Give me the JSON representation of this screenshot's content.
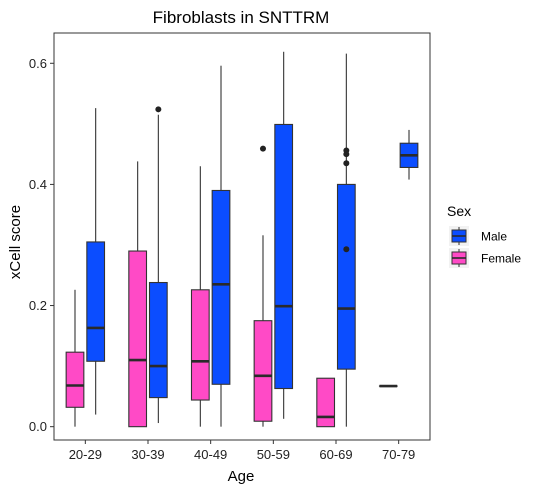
{
  "chart_data": {
    "type": "boxplot",
    "title": "Fibroblasts in SNTTRM",
    "xlabel": "Age",
    "ylabel": "xCell score",
    "ylim": [
      -0.022,
      0.65
    ],
    "yticks": [
      0.0,
      0.2,
      0.4,
      0.6
    ],
    "yticklabels": [
      "0.0",
      "0.2",
      "0.4",
      "0.6"
    ],
    "categories": [
      "20-29",
      "30-39",
      "40-49",
      "50-59",
      "60-69",
      "70-79"
    ],
    "grid": false,
    "legend": {
      "title": "Sex",
      "placement": "right",
      "entries": [
        {
          "label": "Male",
          "color": "#0B4DFF"
        },
        {
          "label": "Female",
          "color": "#FF4AC6"
        }
      ]
    },
    "series": [
      {
        "name": "Female",
        "color": "#FF4AC6",
        "boxes": [
          {
            "category": "20-29",
            "whisker_low": 0.0,
            "q1": 0.032,
            "median": 0.068,
            "q3": 0.123,
            "whisker_high": 0.226,
            "outliers": []
          },
          {
            "category": "30-39",
            "whisker_low": 0.0,
            "q1": 0.0,
            "median": 0.11,
            "q3": 0.29,
            "whisker_high": 0.438,
            "outliers": []
          },
          {
            "category": "40-49",
            "whisker_low": 0.0,
            "q1": 0.044,
            "median": 0.108,
            "q3": 0.226,
            "whisker_high": 0.43,
            "outliers": []
          },
          {
            "category": "50-59",
            "whisker_low": 0.0,
            "q1": 0.009,
            "median": 0.084,
            "q3": 0.175,
            "whisker_high": 0.316,
            "outliers": [
              0.459
            ]
          },
          {
            "category": "60-69",
            "whisker_low": 0.0,
            "q1": 0.0,
            "median": 0.016,
            "q3": 0.08,
            "whisker_high": 0.08,
            "outliers": []
          },
          {
            "category": "70-79",
            "whisker_low": 0.067,
            "q1": 0.067,
            "median": 0.067,
            "q3": 0.067,
            "whisker_high": 0.067,
            "outliers": []
          }
        ]
      },
      {
        "name": "Male",
        "color": "#0B4DFF",
        "boxes": [
          {
            "category": "20-29",
            "whisker_low": 0.02,
            "q1": 0.108,
            "median": 0.163,
            "q3": 0.305,
            "whisker_high": 0.526,
            "outliers": []
          },
          {
            "category": "30-39",
            "whisker_low": 0.006,
            "q1": 0.048,
            "median": 0.1,
            "q3": 0.238,
            "whisker_high": 0.515,
            "outliers": [
              0.524
            ]
          },
          {
            "category": "40-49",
            "whisker_low": 0.0,
            "q1": 0.07,
            "median": 0.235,
            "q3": 0.39,
            "whisker_high": 0.596,
            "outliers": []
          },
          {
            "category": "50-59",
            "whisker_low": 0.013,
            "q1": 0.063,
            "median": 0.199,
            "q3": 0.499,
            "whisker_high": 0.619,
            "outliers": []
          },
          {
            "category": "60-69",
            "whisker_low": 0.0,
            "q1": 0.095,
            "median": 0.195,
            "q3": 0.4,
            "whisker_high": 0.616,
            "outliers": [
              0.456,
              0.45,
              0.435,
              0.293
            ]
          },
          {
            "category": "70-79",
            "whisker_low": 0.408,
            "q1": 0.428,
            "median": 0.448,
            "q3": 0.468,
            "whisker_high": 0.49,
            "outliers": []
          }
        ]
      }
    ]
  }
}
